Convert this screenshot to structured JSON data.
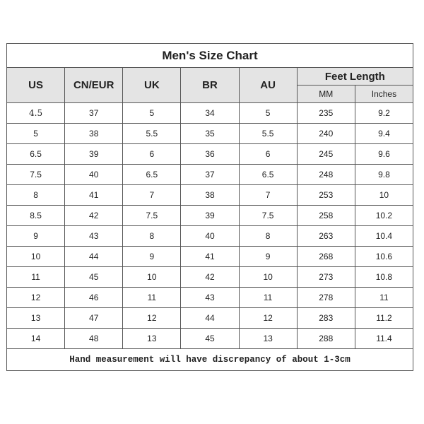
{
  "title": "Men's Size Chart",
  "headers": [
    "US",
    "CN/EUR",
    "UK",
    "BR",
    "AU"
  ],
  "feet_length": {
    "label": "Feet Length",
    "sub": [
      "MM",
      "Inches"
    ]
  },
  "rows": [
    [
      "4.5",
      "37",
      "5",
      "34",
      "5",
      "235",
      "9.2"
    ],
    [
      "5",
      "38",
      "5.5",
      "35",
      "5.5",
      "240",
      "9.4"
    ],
    [
      "6.5",
      "39",
      "6",
      "36",
      "6",
      "245",
      "9.6"
    ],
    [
      "7.5",
      "40",
      "6.5",
      "37",
      "6.5",
      "248",
      "9.8"
    ],
    [
      "8",
      "41",
      "7",
      "38",
      "7",
      "253",
      "10"
    ],
    [
      "8.5",
      "42",
      "7.5",
      "39",
      "7.5",
      "258",
      "10.2"
    ],
    [
      "9",
      "43",
      "8",
      "40",
      "8",
      "263",
      "10.4"
    ],
    [
      "10",
      "44",
      "9",
      "41",
      "9",
      "268",
      "10.6"
    ],
    [
      "11",
      "45",
      "10",
      "42",
      "10",
      "273",
      "10.8"
    ],
    [
      "12",
      "46",
      "11",
      "43",
      "11",
      "278",
      "11"
    ],
    [
      "13",
      "47",
      "12",
      "44",
      "12",
      "283",
      "11.2"
    ],
    [
      "14",
      "48",
      "13",
      "45",
      "13",
      "288",
      "11.4"
    ]
  ],
  "footer": "Hand measurement will have discrepancy of about 1-3cm"
}
